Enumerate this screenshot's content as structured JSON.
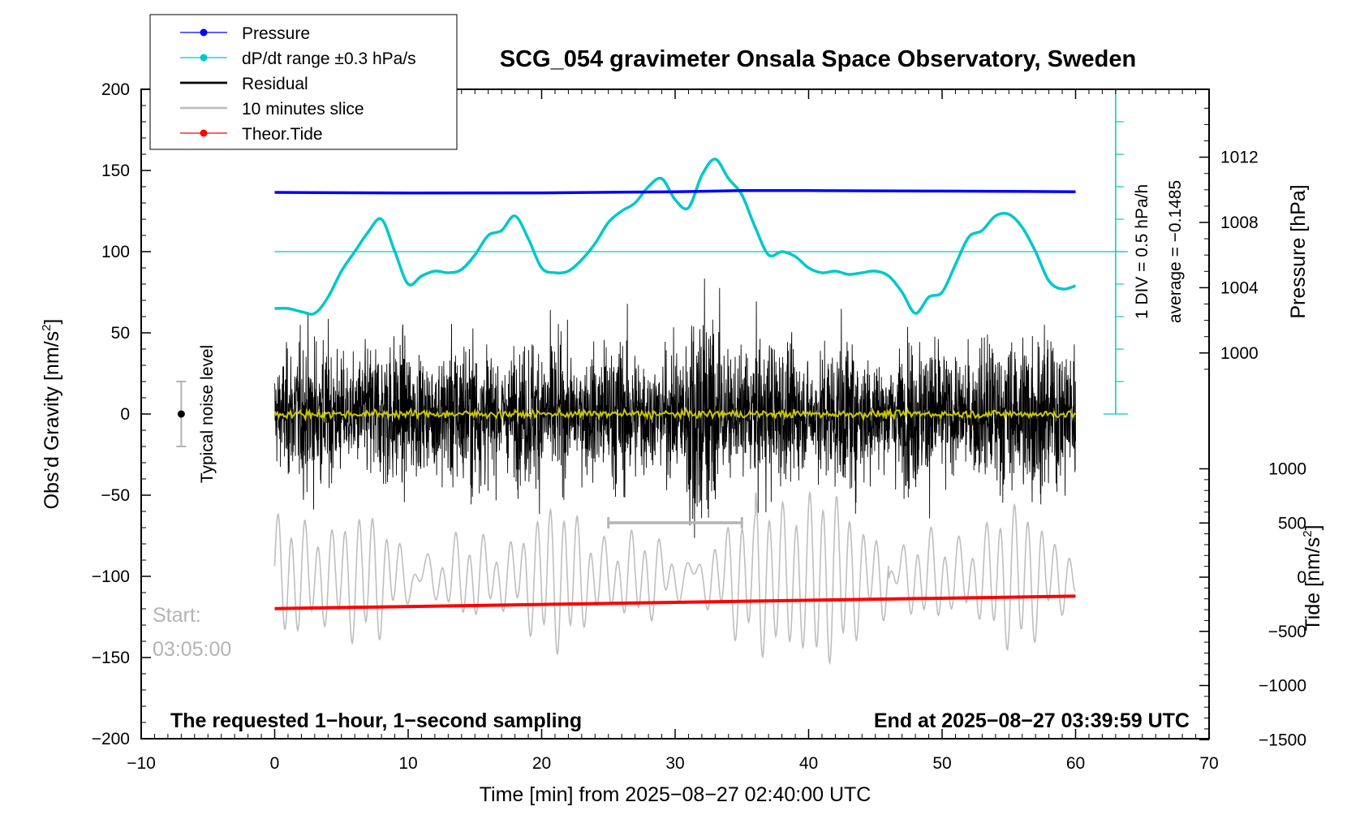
{
  "chart_data": {
    "type": "line",
    "title": "SCG_054 gravimeter Onsala Space Observatory, Sweden",
    "xlabel": "Time [min] from 2025−08−27 02:40:00 UTC",
    "xlim": [
      -10,
      70
    ],
    "xticks": [
      -10,
      0,
      10,
      20,
      30,
      40,
      50,
      60,
      70
    ],
    "xtick_labels": [
      "−10",
      "0",
      "10",
      "20",
      "30",
      "40",
      "50",
      "60",
      "70"
    ],
    "y_left": {
      "label": "Obs’d Gravity [nm/s",
      "label_sup": "2",
      "label_end": "]",
      "ylim": [
        -200,
        200
      ],
      "ticks": [
        -200,
        -150,
        -100,
        -50,
        0,
        50,
        100,
        150,
        200
      ],
      "tick_labels": [
        "−200",
        "−150",
        "−100",
        "−50",
        "0",
        "50",
        "100",
        "150",
        "200"
      ]
    },
    "y_right_pressure": {
      "label": "Pressure [hPa]",
      "ticks": [
        1000,
        1004,
        1008,
        1012
      ],
      "tick_labels": [
        "1000",
        "1004",
        "1008",
        "1012"
      ]
    },
    "y_right_tide": {
      "label": "Tide [nm/s",
      "label_sup": "2",
      "label_end": "]",
      "ticks": [
        -1500,
        -1000,
        -500,
        0,
        500,
        1000
      ],
      "tick_labels": [
        "−1500",
        "−1000",
        "−500",
        "0",
        "500",
        "1000"
      ]
    },
    "legend": {
      "position": "top-left",
      "entries": [
        {
          "label": "Pressure",
          "color": "#0000ff",
          "marker": true
        },
        {
          "label": "dP/dt range ±0.3 hPa/s",
          "color": "#00c8c8",
          "marker": true
        },
        {
          "label": "Residual",
          "color": "#000000",
          "marker": false
        },
        {
          "label": "10 minutes slice",
          "color": "#bebebe",
          "marker": false
        },
        {
          "label": "Theor.Tide",
          "color": "#ff0000",
          "marker": true
        }
      ]
    },
    "series": [
      {
        "name": "Pressure",
        "color": "#0000ff",
        "unit": "gravity-axis",
        "x": [
          0,
          10,
          20,
          30,
          35,
          40,
          50,
          60
        ],
        "values": [
          136.5,
          136.1,
          136.2,
          136.9,
          137.6,
          137.6,
          137.3,
          136.9
        ]
      },
      {
        "name": "dP/dt",
        "color": "#00c8c8",
        "unit": "gravity-axis",
        "x": [
          0,
          1,
          2,
          3,
          4,
          5,
          6,
          7,
          8,
          9,
          10,
          11,
          12,
          13,
          14,
          15,
          16,
          17,
          18,
          19,
          20,
          21,
          22,
          23,
          24,
          25,
          26,
          27,
          28,
          29,
          30,
          31,
          32,
          33,
          34,
          35,
          36,
          37,
          38,
          39,
          40,
          41,
          42,
          43,
          44,
          45,
          46,
          47,
          48,
          49,
          50,
          51,
          52,
          53,
          54,
          55,
          56,
          57,
          58,
          59,
          60
        ],
        "values": [
          65,
          65,
          63,
          62,
          72,
          88,
          100,
          112,
          120,
          100,
          80,
          85,
          88,
          87,
          89,
          98,
          110,
          113,
          122,
          108,
          90,
          87,
          88,
          95,
          105,
          118,
          125,
          130,
          140,
          145,
          132,
          127,
          147,
          157,
          145,
          135,
          115,
          98,
          100,
          97,
          90,
          87,
          88,
          86,
          87,
          88,
          85,
          75,
          62,
          72,
          75,
          92,
          109,
          113,
          122,
          123,
          115,
          100,
          82,
          77,
          79
        ]
      },
      {
        "name": "Residual",
        "color": "#000000",
        "amplitude": 30
      },
      {
        "name": "Residual smoothed",
        "color": "#c8c800"
      },
      {
        "name": "10 minutes slice",
        "color": "#bebebe",
        "unit": "tide-axis",
        "amplitude": 600
      },
      {
        "name": "Theor.Tide",
        "color": "#ff0000",
        "unit": "tide-axis",
        "x": [
          0,
          60
        ],
        "values": [
          -290,
          -175
        ]
      }
    ],
    "average_scale": {
      "color": "#00c8c8",
      "axis_x": 63,
      "reference_value": 100,
      "range_gravity": [
        0,
        200
      ],
      "label_div": "1 DIV = 0.5 hPa/h",
      "label_average": "average = −0.1485"
    },
    "slice_bracket": {
      "x_from": 25,
      "x_to": 35,
      "value": -67
    },
    "noise_bar": {
      "x": -7,
      "center": 0,
      "half_range": 20,
      "label": "Typical noise level"
    },
    "annotations": {
      "start_label": "Start:",
      "start_time": "03:05:00",
      "bottom_left": "The requested 1−hour, 1−second sampling",
      "bottom_right": "End at 2025−08−27 03:39:59 UTC"
    }
  }
}
